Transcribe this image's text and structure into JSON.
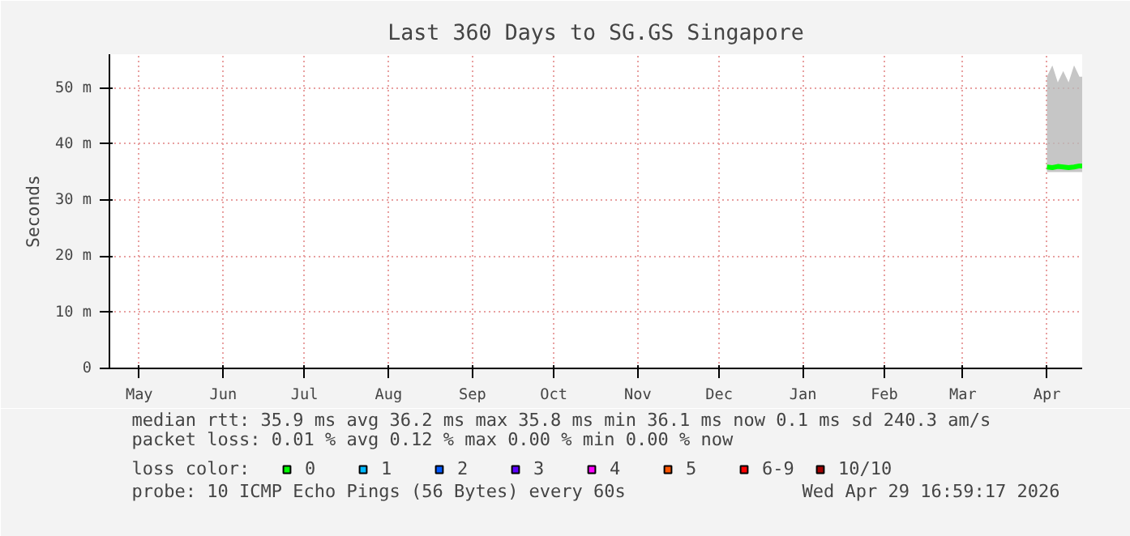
{
  "chart_data": {
    "type": "line",
    "title": "Last 360 Days to SG.GS Singapore",
    "ylabel": "Seconds",
    "legend_title": "loss color:",
    "x": [
      "2026-04-16",
      "2026-04-18",
      "2026-04-20",
      "2026-04-22",
      "2026-04-24",
      "2026-04-26",
      "2026-04-28",
      "2026-04-29"
    ],
    "series": [
      {
        "name": "0",
        "color": "#00ff00",
        "values": [
          35.9,
          35.8,
          36,
          35.9,
          35.8,
          35.9,
          36.1,
          36.1
        ],
        "lower": [
          35,
          35,
          35,
          35,
          35,
          35,
          35,
          35
        ],
        "upper": [
          52,
          54,
          51,
          53,
          51,
          54,
          52,
          52
        ]
      },
      {
        "name": "1",
        "color": "#00b8ff",
        "values": [
          null,
          null,
          null,
          null,
          null,
          null,
          null,
          null
        ]
      },
      {
        "name": "2",
        "color": "#0059ff",
        "values": [
          null,
          null,
          null,
          null,
          null,
          null,
          null,
          null
        ]
      },
      {
        "name": "3",
        "color": "#5e00ff",
        "values": [
          null,
          null,
          null,
          null,
          null,
          null,
          null,
          null
        ]
      },
      {
        "name": "4",
        "color": "#ff00ff",
        "values": [
          null,
          null,
          null,
          null,
          null,
          null,
          null,
          null
        ]
      },
      {
        "name": "5",
        "color": "#ff5500",
        "values": [
          null,
          null,
          null,
          null,
          null,
          null,
          null,
          null
        ]
      },
      {
        "name": "6-9",
        "color": "#ff0000",
        "values": [
          null,
          null,
          null,
          null,
          null,
          null,
          null,
          null
        ]
      },
      {
        "name": "10/10",
        "color": "#a10000",
        "values": [
          null,
          null,
          null,
          null,
          null,
          null,
          null,
          null
        ]
      }
    ],
    "xlim": [
      "2025-05-05",
      "2026-04-29"
    ],
    "xticks": [
      {
        "value": "2025-05-16",
        "label": "May"
      },
      {
        "value": "2025-06-16",
        "label": "Jun"
      },
      {
        "value": "2025-07-16",
        "label": "Jul"
      },
      {
        "value": "2025-08-16",
        "label": "Aug"
      },
      {
        "value": "2025-09-16",
        "label": "Sep"
      },
      {
        "value": "2025-10-16",
        "label": "Oct"
      },
      {
        "value": "2025-11-16",
        "label": "Nov"
      },
      {
        "value": "2025-12-16",
        "label": "Dec"
      },
      {
        "value": "2026-01-16",
        "label": "Jan"
      },
      {
        "value": "2026-02-15",
        "label": "Feb"
      },
      {
        "value": "2026-03-16",
        "label": "Mar"
      },
      {
        "value": "2026-04-16",
        "label": "Apr"
      }
    ],
    "ylim": [
      0,
      56
    ],
    "yticks": [
      0,
      {
        "value": 10,
        "label": "10 m"
      },
      {
        "value": 20,
        "label": "20 m"
      },
      {
        "value": 30,
        "label": "30 m"
      },
      {
        "value": 40,
        "label": "40 m"
      },
      {
        "value": 50,
        "label": "50 m"
      }
    ],
    "grid": true,
    "legend": "bottom",
    "annotations": [
      "median rtt:  35.9 ms avg  36.2 ms max  35.8 ms min  36.1 ms now  0.1 ms sd  240.3   am/s",
      "packet loss: 0.01 % avg  0.12 % max  0.00 % min  0.00 % now",
      "probe:       10 ICMP Echo Pings (56 Bytes) every 60s",
      "Wed Apr 29 16:59:17 2026"
    ]
  }
}
